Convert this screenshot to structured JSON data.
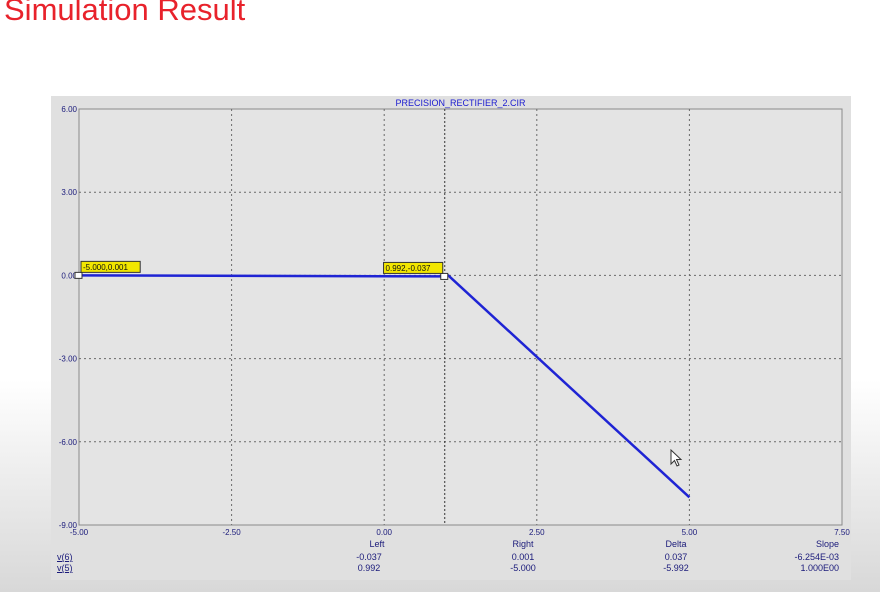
{
  "slide_title": "Simulation Result",
  "chart_data": {
    "type": "line",
    "title": "PRECISION_RECTIFIER_2.CIR",
    "xlim": [
      -5.0,
      7.5
    ],
    "ylim": [
      -9.0,
      6.0
    ],
    "x_ticks": [
      -5.0,
      -2.5,
      0.0,
      2.5,
      5.0,
      7.5
    ],
    "x_tick_labels": [
      "-5.00",
      "-2.50",
      "0.00",
      "2.50",
      "5.00",
      "7.50"
    ],
    "y_ticks": [
      6.0,
      3.0,
      0.0,
      -3.0,
      -6.0,
      -9.0
    ],
    "y_tick_labels": [
      "6.00",
      "3.00",
      "0.00",
      "-3.00",
      "-6.00",
      "-9.00"
    ],
    "grid": true,
    "series": [
      {
        "name": "v(6)",
        "color": "#1f24d4",
        "x": [
          -5.0,
          0.992,
          1.05,
          5.0
        ],
        "y": [
          0.001,
          -0.037,
          0.0,
          -8.0
        ]
      }
    ],
    "cursors": [
      {
        "x": -5.0,
        "y": 0.001,
        "label": "-5.000,0.001"
      },
      {
        "x": 0.992,
        "y": -0.037,
        "label": "0.992,-0.037"
      }
    ],
    "cursor_table": {
      "headers": [
        "Left",
        "Right",
        "Delta",
        "Slope"
      ],
      "rows": [
        {
          "name": "v(6)",
          "values": [
            "-0.037",
            "0.001",
            "0.037",
            "-6.254E-03"
          ]
        },
        {
          "name": "v(5)",
          "values": [
            "0.992",
            "-5.000",
            "-5.992",
            "1.000E00"
          ]
        }
      ]
    }
  }
}
